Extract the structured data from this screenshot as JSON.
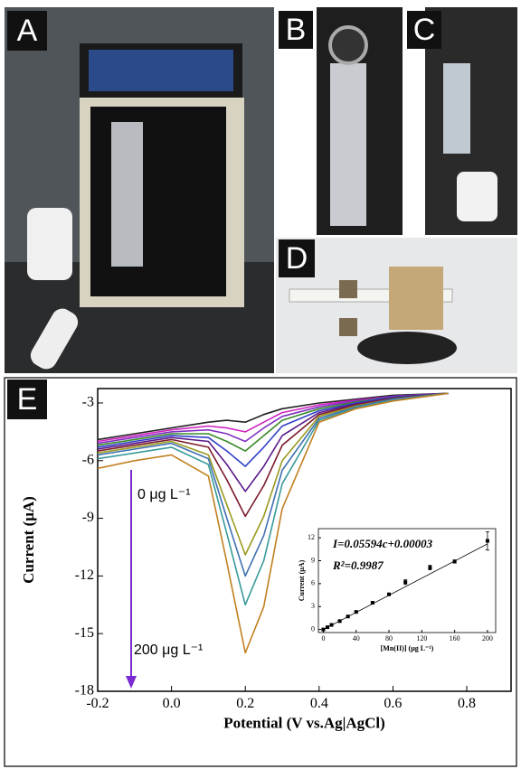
{
  "panel_labels": [
    "A",
    "B",
    "C",
    "D",
    "E"
  ],
  "chart_data": [
    {
      "type": "line",
      "xlabel": "Potential (V vs.Ag|AgCl)",
      "ylabel": "Current (μA)",
      "annotations": [
        "0 μg L⁻¹",
        "200 μg L⁻¹"
      ],
      "x": [
        -0.2,
        -0.1,
        0,
        0.1,
        0.15,
        0.2,
        0.25,
        0.3,
        0.4,
        0.5,
        0.6,
        0.75
      ],
      "series": [
        {
          "color": "#222222",
          "values": [
            -4.9,
            -4.6,
            -4.3,
            -4.0,
            -3.9,
            -4.0,
            -3.6,
            -3.3,
            -3.0,
            -2.8,
            -2.6,
            -2.5
          ]
        },
        {
          "color": "#d020c0",
          "values": [
            -5.0,
            -4.7,
            -4.4,
            -4.2,
            -4.3,
            -4.5,
            -4.0,
            -3.5,
            -3.1,
            -2.85,
            -2.65,
            -2.5
          ]
        },
        {
          "color": "#8030c0",
          "values": [
            -5.1,
            -4.8,
            -4.5,
            -4.4,
            -4.6,
            -5.0,
            -4.3,
            -3.7,
            -3.2,
            -2.9,
            -2.65,
            -2.5
          ]
        },
        {
          "color": "#3a8a2a",
          "values": [
            -5.2,
            -4.9,
            -4.6,
            -4.6,
            -5.0,
            -5.5,
            -4.7,
            -3.9,
            -3.3,
            -2.95,
            -2.7,
            -2.5
          ]
        },
        {
          "color": "#3040c8",
          "values": [
            -5.3,
            -5.0,
            -4.7,
            -4.8,
            -5.5,
            -6.3,
            -5.3,
            -4.2,
            -3.4,
            -3.0,
            -2.7,
            -2.5
          ]
        },
        {
          "color": "#5a1a8a",
          "values": [
            -5.4,
            -5.1,
            -4.8,
            -5.0,
            -6.2,
            -7.6,
            -6.3,
            -4.7,
            -3.5,
            -3.05,
            -2.75,
            -2.5
          ]
        },
        {
          "color": "#7a1a2a",
          "values": [
            -5.5,
            -5.2,
            -4.9,
            -5.3,
            -7.0,
            -8.9,
            -7.3,
            -5.2,
            -3.6,
            -3.1,
            -2.75,
            -2.5
          ]
        },
        {
          "color": "#9a9a20",
          "values": [
            -5.6,
            -5.3,
            -5.0,
            -5.7,
            -8.3,
            -10.9,
            -8.9,
            -6.0,
            -3.7,
            -3.15,
            -2.8,
            -2.5
          ]
        },
        {
          "color": "#4070b0",
          "values": [
            -5.7,
            -5.4,
            -5.1,
            -5.9,
            -9.0,
            -12.0,
            -9.9,
            -6.5,
            -3.8,
            -3.2,
            -2.8,
            -2.5
          ]
        },
        {
          "color": "#3a9a9a",
          "values": [
            -5.9,
            -5.6,
            -5.3,
            -6.2,
            -9.8,
            -13.5,
            -11.2,
            -7.2,
            -3.9,
            -3.25,
            -2.85,
            -2.5
          ]
        },
        {
          "color": "#c08020",
          "values": [
            -6.4,
            -6.0,
            -5.7,
            -6.8,
            -11.3,
            -16.0,
            -13.6,
            -8.5,
            -4.0,
            -3.3,
            -2.9,
            -2.5
          ]
        }
      ],
      "xlim": [
        -0.2,
        0.92
      ],
      "xticks": [
        -0.2,
        {
          "value": 0,
          "label": "0.0"
        },
        0.2,
        0.4,
        0.6,
        0.8
      ],
      "ylim": [
        -18,
        -2.25
      ],
      "yticks": [
        -3,
        -6,
        -9,
        -12,
        -15,
        -18
      ]
    },
    {
      "type": "scatter",
      "xlabel": "[Mn(II)] (μg L⁻¹)",
      "ylabel": "Current (μA)",
      "annotations": [
        "I=0.05594c+0.00003",
        "R²=0.9987"
      ],
      "x": [
        0,
        5,
        10,
        20,
        30,
        40,
        60,
        80,
        100,
        130,
        160,
        200
      ],
      "values": [
        0.0,
        0.3,
        0.6,
        1.1,
        1.7,
        2.3,
        3.5,
        4.6,
        6.2,
        8.1,
        8.9,
        11.6
      ],
      "errors": [
        0.05,
        0.05,
        0.05,
        0.1,
        0.1,
        0.1,
        0.15,
        0.15,
        0.3,
        0.3,
        0.2,
        1.2
      ],
      "color": "#000000",
      "fit_line": {
        "x": [
          0,
          200
        ],
        "values": [
          0.0,
          11.2
        ]
      },
      "xlim": [
        -6,
        210
      ],
      "xticks": [
        0,
        40,
        80,
        120,
        160,
        200
      ],
      "ylim": [
        -0.4,
        13.2
      ],
      "yticks": [
        0,
        3,
        6,
        9,
        12
      ]
    }
  ]
}
